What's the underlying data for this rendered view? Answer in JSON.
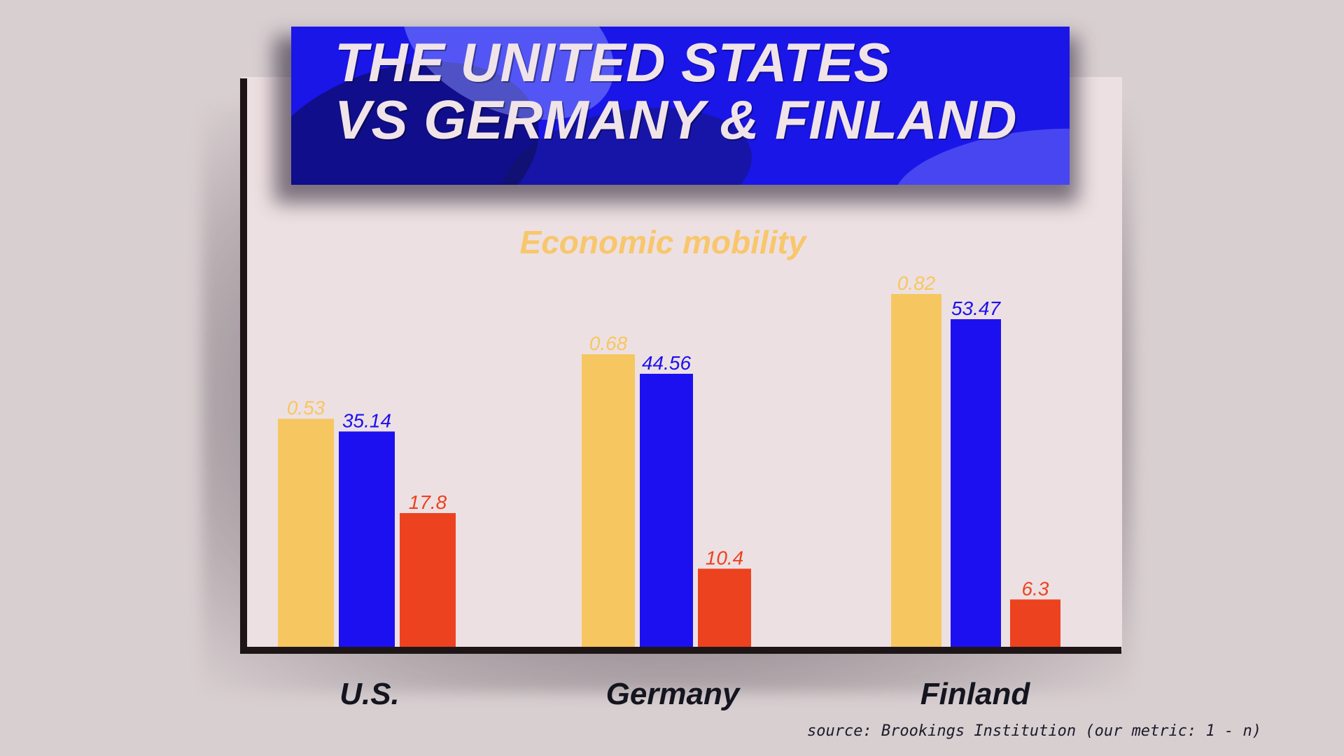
{
  "banner": {
    "title": "THE UNITED STATES\nVS GERMANY & FINLAND"
  },
  "chart_data": {
    "type": "bar",
    "title": "Economic mobility",
    "categories": [
      "U.S.",
      "Germany",
      "Finland"
    ],
    "series": [
      {
        "values": [
          0.53,
          0.68,
          0.82
        ],
        "color": "#f6c760",
        "labels": [
          "0.53",
          "0.68",
          "0.82"
        ]
      },
      {
        "values": [
          35.14,
          44.56,
          53.47
        ],
        "color": "#1c10f0",
        "labels": [
          "35.14",
          "44.56",
          "53.47"
        ]
      },
      {
        "values": [
          17.8,
          10.4,
          6.3
        ],
        "color": "#ec4220",
        "labels": [
          "17.8",
          "10.4",
          "6.3"
        ]
      }
    ],
    "grid": false,
    "ylabel": "",
    "xlabel": ""
  },
  "source": "source: Brookings Institution (our metric: 1 - n)"
}
